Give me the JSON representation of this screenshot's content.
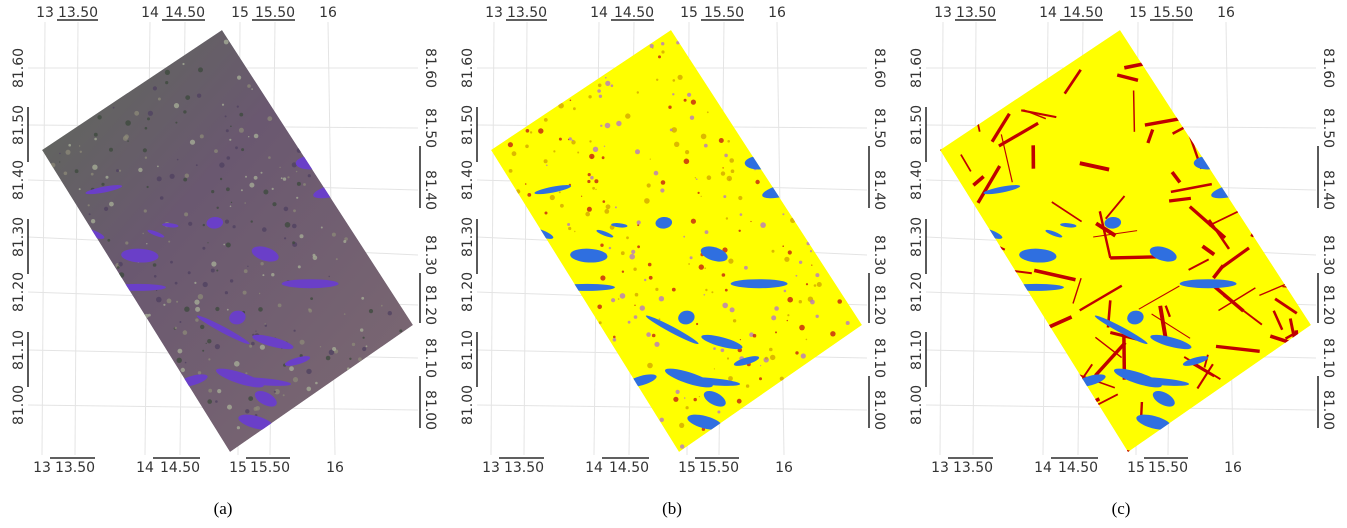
{
  "panels": [
    {
      "caption": "(a)",
      "top_ticks": [
        "13",
        "13.50",
        "14",
        "14.50",
        "15",
        "15.50",
        "16"
      ],
      "bottom_ticks": [
        "13",
        "13.50",
        "14",
        "14.50",
        "15",
        "15.50",
        "16"
      ],
      "left_ticks": [
        "81.00",
        "81.10",
        "81.20",
        "81.30",
        "81.40",
        "81.50",
        "81.60"
      ],
      "right_ticks": [
        "81.00",
        "81.10",
        "81.20",
        "81.30",
        "81.40",
        "81.50",
        "81.60"
      ]
    },
    {
      "caption": "(b)",
      "top_ticks": [
        "13",
        "13.50",
        "14",
        "14.50",
        "15",
        "15.50",
        "16"
      ],
      "bottom_ticks": [
        "13",
        "13.50",
        "14",
        "14.50",
        "15",
        "15.50",
        "16"
      ],
      "left_ticks": [
        "81.00",
        "81.10",
        "81.20",
        "81.30",
        "81.40",
        "81.50",
        "81.60"
      ],
      "right_ticks": [
        "81.00",
        "81.10",
        "81.20",
        "81.30",
        "81.40",
        "81.50",
        "81.60"
      ]
    },
    {
      "caption": "(c)",
      "top_ticks": [
        "13",
        "13.50",
        "14",
        "14.50",
        "15",
        "15.50",
        "16"
      ],
      "bottom_ticks": [
        "13",
        "13.50",
        "14",
        "14.50",
        "15",
        "15.50",
        "16"
      ],
      "left_ticks": [
        "81.00",
        "81.10",
        "81.20",
        "81.30",
        "81.40",
        "81.50",
        "81.60"
      ],
      "right_ticks": [
        "81.00",
        "81.10",
        "81.20",
        "81.30",
        "81.40",
        "81.50",
        "81.60"
      ]
    }
  ]
}
